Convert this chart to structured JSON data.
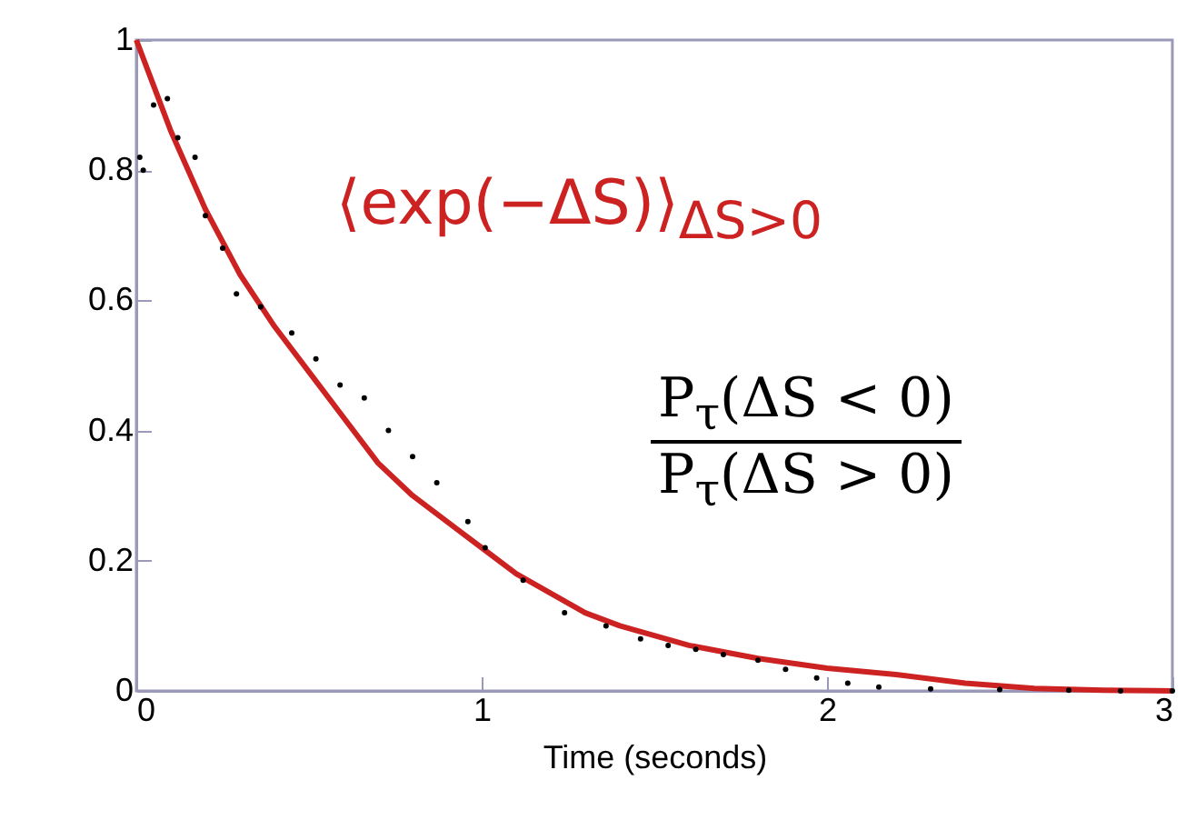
{
  "chart_data": {
    "type": "line",
    "xlabel": "Time (seconds)",
    "xlim": [
      0,
      3
    ],
    "xticks": [
      0,
      1,
      2,
      3
    ],
    "ylim": [
      0,
      1
    ],
    "yticks": [
      0,
      0.2,
      0.4,
      0.6,
      0.8,
      1
    ],
    "grid": false,
    "annotations": [
      "P$_{τ}$(ΔS < 0)",
      "P$_{τ}$(ΔS > 0)"
    ],
    "series": [
      {
        "name": "⟨exp(−ΔS)⟩$_{ΔS>0}$",
        "color": "#cc2222",
        "x": [
          0,
          0.05,
          0.1,
          0.2,
          0.3,
          0.4,
          0.5,
          0.6,
          0.7,
          0.8,
          0.9,
          1.0,
          1.1,
          1.2,
          1.3,
          1.4,
          1.5,
          1.6,
          1.8,
          2.0,
          2.2,
          2.4,
          2.6,
          2.8,
          3
        ],
        "values": [
          1,
          0.93,
          0.86,
          0.74,
          0.64,
          0.56,
          0.49,
          0.42,
          0.35,
          0.3,
          0.26,
          0.22,
          0.18,
          0.15,
          0.12,
          0.1,
          0.085,
          0.07,
          0.05,
          0.035,
          0.025,
          0.012,
          0.004,
          0.001,
          0
        ]
      },
      {
        "type": "scatter",
        "marker": "circle",
        "color": "#000000",
        "x": [
          0.01,
          0.02,
          0.05,
          0.09,
          0.12,
          0.17,
          0.2,
          0.25,
          0.29,
          0.36,
          0.45,
          0.52,
          0.59,
          0.66,
          0.73,
          0.8,
          0.87,
          0.96,
          1.01,
          1.12,
          1.24,
          1.36,
          1.46,
          1.54,
          1.62,
          1.7,
          1.8,
          1.88,
          1.97,
          2.06,
          2.15,
          2.3,
          2.5,
          2.7,
          2.85,
          3
        ],
        "values": [
          0.82,
          0.8,
          0.9,
          0.91,
          0.85,
          0.82,
          0.73,
          0.68,
          0.61,
          0.59,
          0.55,
          0.51,
          0.47,
          0.45,
          0.4,
          0.36,
          0.32,
          0.26,
          0.22,
          0.17,
          0.12,
          0.1,
          0.08,
          0.07,
          0.064,
          0.056,
          0.047,
          0.033,
          0.02,
          0.012,
          0.006,
          0.003,
          0.002,
          0.001,
          0,
          0
        ]
      }
    ]
  }
}
